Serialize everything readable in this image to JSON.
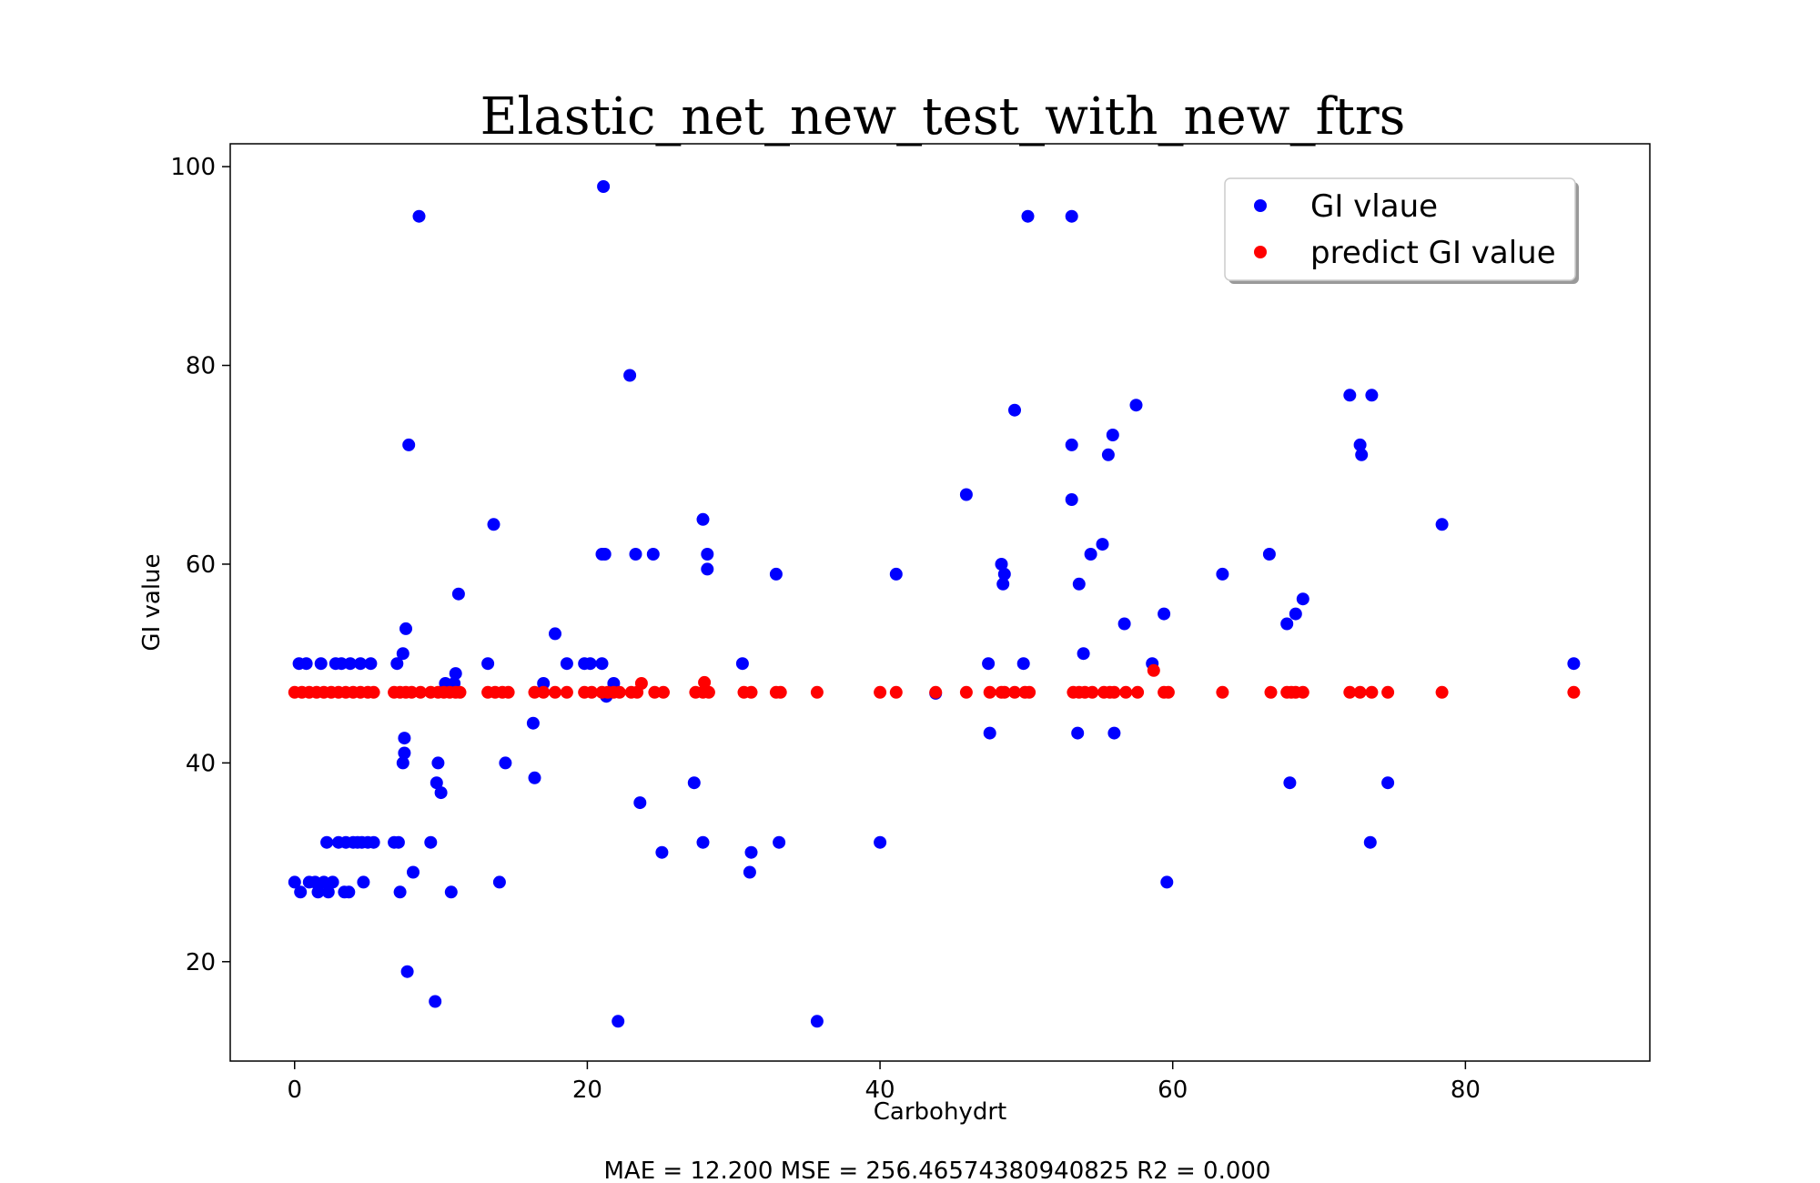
{
  "chart_data": {
    "type": "scatter",
    "title": "Elastic_net_new_test_with_new_ftrs",
    "xlabel": "Carbohydrt",
    "ylabel": "GI value",
    "xlim": [
      -4.4,
      92.6
    ],
    "ylim": [
      10,
      102.3
    ],
    "x_ticks": [
      0,
      20,
      40,
      60,
      80
    ],
    "y_ticks": [
      20,
      40,
      60,
      80,
      100
    ],
    "legend_position": "top-right",
    "metrics_text": "MAE = 12.200 MSE = 256.46574380940825 R2 = 0.000",
    "series": [
      {
        "name": "GI vlaue",
        "color": "#0000ff",
        "points": [
          [
            0,
            28
          ],
          [
            0.3,
            50
          ],
          [
            0.4,
            27
          ],
          [
            0.8,
            50
          ],
          [
            1,
            28
          ],
          [
            1.4,
            28
          ],
          [
            1.6,
            27
          ],
          [
            1.8,
            50
          ],
          [
            2,
            28
          ],
          [
            2.2,
            32
          ],
          [
            2.3,
            27
          ],
          [
            2.6,
            28
          ],
          [
            2.8,
            50
          ],
          [
            3,
            32
          ],
          [
            3.2,
            50
          ],
          [
            3.4,
            27
          ],
          [
            3.5,
            32
          ],
          [
            3.7,
            27
          ],
          [
            3.8,
            50
          ],
          [
            4,
            32
          ],
          [
            4.3,
            32
          ],
          [
            4.5,
            50
          ],
          [
            4.6,
            32
          ],
          [
            4.7,
            28
          ],
          [
            5,
            32
          ],
          [
            5.2,
            50
          ],
          [
            5.4,
            32
          ],
          [
            6.8,
            32
          ],
          [
            7,
            50
          ],
          [
            7.1,
            32
          ],
          [
            7.2,
            27
          ],
          [
            7.4,
            51
          ],
          [
            7.5,
            42.5
          ],
          [
            7.5,
            41
          ],
          [
            7.4,
            40
          ],
          [
            7.6,
            53.5
          ],
          [
            7.7,
            19
          ],
          [
            7.8,
            72
          ],
          [
            8.1,
            29
          ],
          [
            8.5,
            95
          ],
          [
            9.3,
            32
          ],
          [
            9.6,
            16
          ],
          [
            9.7,
            38
          ],
          [
            9.8,
            40
          ],
          [
            10,
            37
          ],
          [
            10.3,
            48
          ],
          [
            10.5,
            47.5
          ],
          [
            10.7,
            27
          ],
          [
            10.9,
            48
          ],
          [
            11,
            49
          ],
          [
            11.2,
            57
          ],
          [
            13.2,
            50
          ],
          [
            13.6,
            64
          ],
          [
            14,
            28
          ],
          [
            14.4,
            40
          ],
          [
            16.3,
            44
          ],
          [
            16.4,
            38.5
          ],
          [
            17,
            48
          ],
          [
            17.8,
            53
          ],
          [
            18.6,
            50
          ],
          [
            19.8,
            50
          ],
          [
            20.2,
            50
          ],
          [
            21,
            61
          ],
          [
            21,
            50
          ],
          [
            21.1,
            98
          ],
          [
            21.2,
            61
          ],
          [
            21.3,
            46.7
          ],
          [
            21.8,
            48
          ],
          [
            22.1,
            14
          ],
          [
            22.9,
            79
          ],
          [
            23.3,
            61
          ],
          [
            23.6,
            36
          ],
          [
            24.5,
            61
          ],
          [
            25.1,
            31
          ],
          [
            27.3,
            38
          ],
          [
            27.9,
            32
          ],
          [
            27.9,
            64.5
          ],
          [
            28.2,
            61
          ],
          [
            28.2,
            59.5
          ],
          [
            30.6,
            50
          ],
          [
            31.1,
            29
          ],
          [
            31.2,
            31
          ],
          [
            32.9,
            59
          ],
          [
            33.1,
            32
          ],
          [
            35.7,
            14
          ],
          [
            40,
            32
          ],
          [
            41.1,
            59
          ],
          [
            43.8,
            47
          ],
          [
            45.9,
            67
          ],
          [
            47.4,
            50
          ],
          [
            47.5,
            43
          ],
          [
            48.3,
            60
          ],
          [
            48.4,
            58
          ],
          [
            48.5,
            59
          ],
          [
            49.2,
            75.5
          ],
          [
            49.8,
            50
          ],
          [
            50.1,
            95
          ],
          [
            53.1,
            95
          ],
          [
            53.1,
            72
          ],
          [
            53.1,
            66.5
          ],
          [
            53.5,
            43
          ],
          [
            53.6,
            58
          ],
          [
            53.9,
            51
          ],
          [
            54.4,
            61
          ],
          [
            55.2,
            62
          ],
          [
            55.6,
            71
          ],
          [
            55.9,
            73
          ],
          [
            56,
            43
          ],
          [
            56.7,
            54
          ],
          [
            57.5,
            76
          ],
          [
            58.6,
            50
          ],
          [
            59.4,
            55
          ],
          [
            59.6,
            28
          ],
          [
            63.4,
            59
          ],
          [
            66.6,
            61
          ],
          [
            67.8,
            54
          ],
          [
            68,
            38
          ],
          [
            68.4,
            55
          ],
          [
            68.9,
            56.5
          ],
          [
            72.1,
            77
          ],
          [
            72.8,
            72
          ],
          [
            72.9,
            71
          ],
          [
            73.5,
            32
          ],
          [
            73.6,
            77
          ],
          [
            74.7,
            38
          ],
          [
            78.4,
            64
          ],
          [
            87.4,
            50
          ]
        ]
      },
      {
        "name": "predict GI value",
        "color": "#ff0000",
        "points": [
          [
            0,
            47.1
          ],
          [
            0.5,
            47.1
          ],
          [
            1,
            47.1
          ],
          [
            1.5,
            47.1
          ],
          [
            2,
            47.1
          ],
          [
            2.5,
            47.1
          ],
          [
            3,
            47.1
          ],
          [
            3.5,
            47.1
          ],
          [
            4,
            47.1
          ],
          [
            4.5,
            47.1
          ],
          [
            5,
            47.1
          ],
          [
            5.4,
            47.1
          ],
          [
            6.8,
            47.1
          ],
          [
            7.2,
            47.1
          ],
          [
            7.6,
            47.1
          ],
          [
            8,
            47.1
          ],
          [
            8.6,
            47.1
          ],
          [
            9.3,
            47.1
          ],
          [
            9.8,
            47.1
          ],
          [
            10.2,
            47.1
          ],
          [
            10.6,
            47.1
          ],
          [
            11,
            47.1
          ],
          [
            11.3,
            47.1
          ],
          [
            13.2,
            47.1
          ],
          [
            13.7,
            47.1
          ],
          [
            14.2,
            47.1
          ],
          [
            14.6,
            47.1
          ],
          [
            16.4,
            47.1
          ],
          [
            17,
            47.1
          ],
          [
            17.8,
            47.1
          ],
          [
            18.6,
            47.1
          ],
          [
            19.8,
            47.1
          ],
          [
            20.3,
            47.1
          ],
          [
            21,
            47.1
          ],
          [
            21.4,
            47.1
          ],
          [
            21.8,
            47.1
          ],
          [
            22.2,
            47.1
          ],
          [
            23,
            47.1
          ],
          [
            23.4,
            47.1
          ],
          [
            23.7,
            48
          ],
          [
            24.6,
            47.1
          ],
          [
            25.2,
            47.1
          ],
          [
            27.4,
            47.1
          ],
          [
            27.9,
            47.1
          ],
          [
            28,
            48.1
          ],
          [
            28.3,
            47.1
          ],
          [
            30.7,
            47.1
          ],
          [
            31.2,
            47.1
          ],
          [
            32.9,
            47.1
          ],
          [
            33.2,
            47.1
          ],
          [
            35.7,
            47.1
          ],
          [
            40,
            47.1
          ],
          [
            41.1,
            47.1
          ],
          [
            43.8,
            47.1
          ],
          [
            45.9,
            47.1
          ],
          [
            47.5,
            47.1
          ],
          [
            48.3,
            47.1
          ],
          [
            48.5,
            47.1
          ],
          [
            49.2,
            47.1
          ],
          [
            49.9,
            47.1
          ],
          [
            50.2,
            47.1
          ],
          [
            53.2,
            47.1
          ],
          [
            53.6,
            47.1
          ],
          [
            54,
            47.1
          ],
          [
            54.5,
            47.1
          ],
          [
            55.3,
            47.1
          ],
          [
            55.7,
            47.1
          ],
          [
            56,
            47.1
          ],
          [
            56.8,
            47.1
          ],
          [
            57.6,
            47.1
          ],
          [
            58.7,
            49.3
          ],
          [
            59.4,
            47.1
          ],
          [
            59.7,
            47.1
          ],
          [
            63.4,
            47.1
          ],
          [
            66.7,
            47.1
          ],
          [
            67.8,
            47.1
          ],
          [
            68.1,
            47.1
          ],
          [
            68.4,
            47.1
          ],
          [
            68.9,
            47.1
          ],
          [
            72.1,
            47.1
          ],
          [
            72.8,
            47.1
          ],
          [
            73.6,
            47.1
          ],
          [
            74.7,
            47.1
          ],
          [
            78.4,
            47.1
          ],
          [
            87.4,
            47.1
          ]
        ]
      }
    ]
  }
}
